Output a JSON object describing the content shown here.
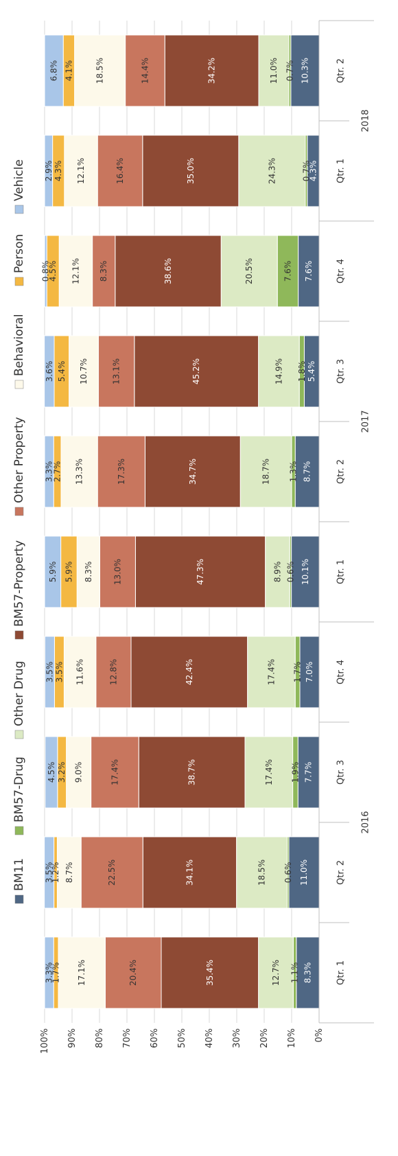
{
  "chart_data": {
    "type": "bar",
    "stacked": true,
    "orientation": "rotated-page-landscape",
    "ylim": [
      0,
      100
    ],
    "yticks": [
      "0%",
      "10%",
      "20%",
      "30%",
      "40%",
      "50%",
      "60%",
      "70%",
      "80%",
      "90%",
      "100%"
    ],
    "categories": [
      "Qtr. 1",
      "Qtr. 2",
      "Qtr. 3",
      "Qtr. 4",
      "Qtr. 1",
      "Qtr. 2",
      "Qtr. 3",
      "Qtr. 4",
      "Qtr. 1",
      "Qtr. 2"
    ],
    "groups": [
      {
        "label": "2016",
        "count": 4
      },
      {
        "label": "2017",
        "count": 4
      },
      {
        "label": "2018",
        "count": 2
      }
    ],
    "legend_position": "top",
    "series": [
      {
        "name": "BM11",
        "color": "#4f6784",
        "label_color": "#ffffff",
        "values": [
          8.3,
          11.0,
          7.7,
          7.0,
          10.1,
          8.7,
          5.4,
          7.6,
          4.3,
          10.3
        ],
        "labels": [
          "8.3%",
          "11.0%",
          "7.7%",
          "7.0%",
          "10.1%",
          "8.7%",
          "5.4%",
          "7.6%",
          "4.3%",
          "10.3%"
        ]
      },
      {
        "name": "BM57-Drug",
        "color": "#8fb85a",
        "label_color": "#333333",
        "values": [
          1.1,
          0.6,
          1.9,
          1.7,
          0.6,
          1.3,
          1.8,
          7.6,
          0.7,
          0.7
        ],
        "labels": [
          "1.1%",
          "0.6%",
          "1.9%",
          "1.7%",
          "0.6%",
          "1.3%",
          "1.8%",
          "7.6%",
          "0.7%",
          "0.7%"
        ]
      },
      {
        "name": "Other Drug",
        "color": "#dceac4",
        "label_color": "#333333",
        "values": [
          12.7,
          18.5,
          17.4,
          17.4,
          8.9,
          18.7,
          14.9,
          20.5,
          24.3,
          11.0
        ],
        "labels": [
          "12.7%",
          "18.5%",
          "17.4%",
          "17.4%",
          "8.9%",
          "18.7%",
          "14.9%",
          "20.5%",
          "24.3%",
          "11.0%"
        ]
      },
      {
        "name": "BM57-Property",
        "color": "#8e4a34",
        "label_color": "#ffffff",
        "values": [
          35.4,
          34.1,
          38.7,
          42.4,
          47.3,
          34.7,
          45.2,
          38.6,
          35.0,
          34.2
        ],
        "labels": [
          "35.4%",
          "34.1%",
          "38.7%",
          "42.4%",
          "47.3%",
          "34.7%",
          "45.2%",
          "38.6%",
          "35.0%",
          "34.2%"
        ]
      },
      {
        "name": "Other Property",
        "color": "#c8765e",
        "label_color": "#333333",
        "values": [
          20.4,
          22.5,
          17.4,
          12.8,
          13.0,
          17.3,
          13.1,
          8.3,
          16.4,
          14.4
        ],
        "labels": [
          "20.4%",
          "22.5%",
          "17.4%",
          "12.8%",
          "13.0%",
          "17.3%",
          "13.1%",
          "8.3%",
          "16.4%",
          "14.4%"
        ]
      },
      {
        "name": "Behavioral",
        "color": "#fdf9ea",
        "label_color": "#333333",
        "values": [
          17.1,
          8.7,
          9.0,
          11.6,
          8.3,
          13.3,
          10.7,
          12.1,
          12.1,
          18.5
        ],
        "labels": [
          "17.1%",
          "8.7%",
          "9.0%",
          "11.6%",
          "8.3%",
          "13.3%",
          "10.7%",
          "12.1%",
          "12.1%",
          "18.5%"
        ]
      },
      {
        "name": "Person",
        "color": "#f4b842",
        "label_color": "#333333",
        "values": [
          1.7,
          1.2,
          3.2,
          3.5,
          5.9,
          2.7,
          5.4,
          4.5,
          4.3,
          4.1
        ],
        "labels": [
          "1.7%",
          "1.2%",
          "3.2%",
          "3.5%",
          "5.9%",
          "2.7%",
          "5.4%",
          "4.5%",
          "4.3%",
          "4.1%"
        ]
      },
      {
        "name": "Vehicle",
        "color": "#a9c6e8",
        "label_color": "#333333",
        "values": [
          3.3,
          3.5,
          4.5,
          3.5,
          5.9,
          3.3,
          3.6,
          0.8,
          2.9,
          6.8
        ],
        "labels": [
          "3.3%",
          "3.5%",
          "4.5%",
          "3.5%",
          "5.9%",
          "3.3%",
          "3.6%",
          "0.8%",
          "2.9%",
          "6.8%"
        ]
      }
    ]
  }
}
